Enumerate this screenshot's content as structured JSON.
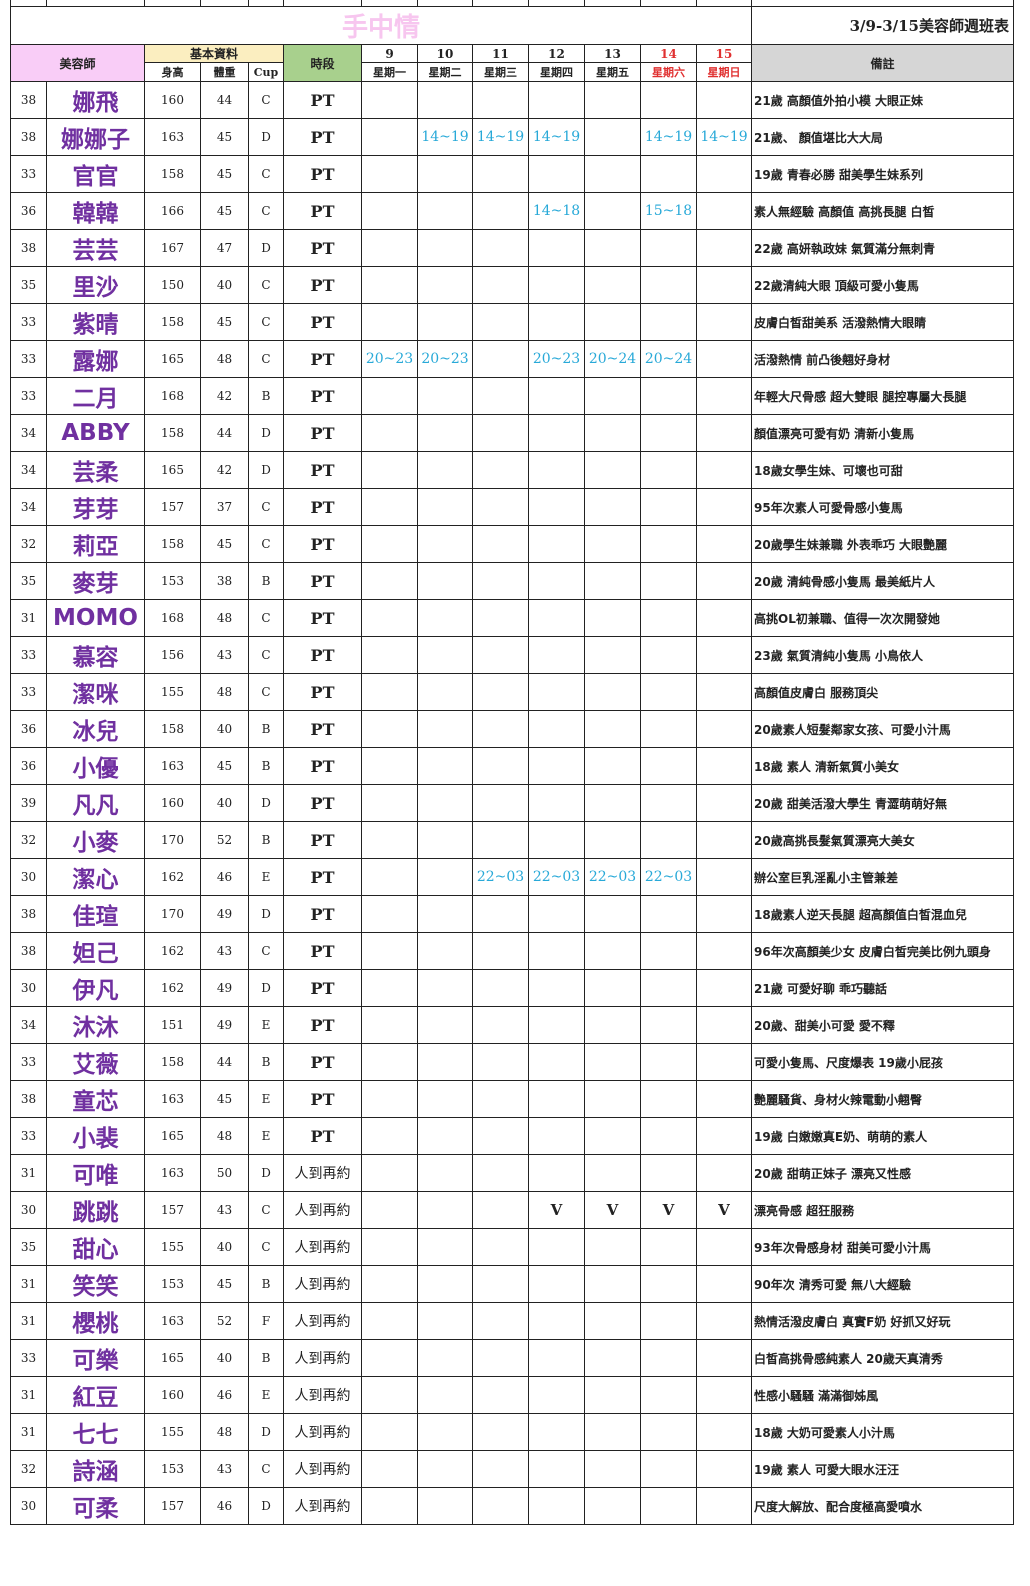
{
  "title": {
    "brand": "手中情",
    "week": "3/9-3/15美容師週班表"
  },
  "header": {
    "beautician": "美容師",
    "basic": "基本資料",
    "height": "身高",
    "weight": "體重",
    "cup": "Cup",
    "period": "時段",
    "notes": "備註",
    "days": [
      {
        "date": "9",
        "weekday": "星期一"
      },
      {
        "date": "10",
        "weekday": "星期二"
      },
      {
        "date": "11",
        "weekday": "星期三"
      },
      {
        "date": "12",
        "weekday": "星期四"
      },
      {
        "date": "13",
        "weekday": "星期五"
      },
      {
        "date": "14",
        "weekday": "星期六",
        "weekend": true
      },
      {
        "date": "15",
        "weekday": "星期日",
        "weekend": true
      }
    ]
  },
  "colors": {
    "name": "#7030a0",
    "schedule": "#28a9d8",
    "weekend": "#e03030",
    "brand": "#f7c6ef"
  },
  "rows": [
    {
      "no": "38",
      "name": "娜飛",
      "h": "160",
      "w": "44",
      "cup": "C",
      "period": "PT",
      "s": [
        "",
        "",
        "",
        "",
        "",
        "",
        ""
      ],
      "note": "21歲 高顏值外拍小模 大眼正妹"
    },
    {
      "no": "38",
      "name": "娜娜子",
      "h": "163",
      "w": "45",
      "cup": "D",
      "period": "PT",
      "s": [
        "",
        "14~19",
        "14~19",
        "14~19",
        "",
        "14~19",
        "14~19"
      ],
      "note": "21歲、 顏值堪比大大局"
    },
    {
      "no": "33",
      "name": "官官",
      "h": "158",
      "w": "45",
      "cup": "C",
      "period": "PT",
      "s": [
        "",
        "",
        "",
        "",
        "",
        "",
        ""
      ],
      "note": "19歲 青春必勝  甜美學生妹系列"
    },
    {
      "no": "36",
      "name": "韓韓",
      "h": "166",
      "w": "45",
      "cup": "C",
      "period": "PT",
      "s": [
        "",
        "",
        "",
        "14~18",
        "",
        "15~18",
        ""
      ],
      "note": "素人無經驗 高顏值 高挑長腿 白皙"
    },
    {
      "no": "38",
      "name": "芸芸",
      "h": "167",
      "w": "47",
      "cup": "D",
      "period": "PT",
      "s": [
        "",
        "",
        "",
        "",
        "",
        "",
        ""
      ],
      "note": "22歲 高妍執政妹 氣質滿分無刺青"
    },
    {
      "no": "35",
      "name": "里沙",
      "h": "150",
      "w": "40",
      "cup": "C",
      "period": "PT",
      "s": [
        "",
        "",
        "",
        "",
        "",
        "",
        ""
      ],
      "note": "22歲清純大眼 頂級可愛小隻馬"
    },
    {
      "no": "33",
      "name": "紫晴",
      "h": "158",
      "w": "45",
      "cup": "C",
      "period": "PT",
      "s": [
        "",
        "",
        "",
        "",
        "",
        "",
        ""
      ],
      "note": "皮膚白皙甜美系 活潑熱情大眼睛"
    },
    {
      "no": "33",
      "name": "露娜",
      "h": "165",
      "w": "48",
      "cup": "C",
      "period": "PT",
      "s": [
        "20~23",
        "20~23",
        "",
        "20~23",
        "20~24",
        "20~24",
        ""
      ],
      "note": "活潑熱情  前凸後翹好身材"
    },
    {
      "no": "33",
      "name": "二月",
      "h": "168",
      "w": "42",
      "cup": "B",
      "period": "PT",
      "s": [
        "",
        "",
        "",
        "",
        "",
        "",
        ""
      ],
      "note": "年輕大尺骨感 超大雙眼 腿控專屬大長腿"
    },
    {
      "no": "34",
      "name": "ABBY",
      "h": "158",
      "w": "44",
      "cup": "D",
      "period": "PT",
      "s": [
        "",
        "",
        "",
        "",
        "",
        "",
        ""
      ],
      "note": "顏值漂亮可愛有奶 清新小隻馬"
    },
    {
      "no": "34",
      "name": "芸柔",
      "h": "165",
      "w": "42",
      "cup": "D",
      "period": "PT",
      "s": [
        "",
        "",
        "",
        "",
        "",
        "",
        ""
      ],
      "note": "18歲女學生妹、可壞也可甜"
    },
    {
      "no": "34",
      "name": "芽芽",
      "h": "157",
      "w": "37",
      "cup": "C",
      "period": "PT",
      "s": [
        "",
        "",
        "",
        "",
        "",
        "",
        ""
      ],
      "note": "95年次素人可愛骨感小隻馬"
    },
    {
      "no": "32",
      "name": "莉亞",
      "h": "158",
      "w": "45",
      "cup": "C",
      "period": "PT",
      "s": [
        "",
        "",
        "",
        "",
        "",
        "",
        ""
      ],
      "note": "20歲學生妹兼職 外表乖巧 大眼艷麗"
    },
    {
      "no": "35",
      "name": "麥芽",
      "h": "153",
      "w": "38",
      "cup": "B",
      "period": "PT",
      "s": [
        "",
        "",
        "",
        "",
        "",
        "",
        ""
      ],
      "note": "20歲 清純骨感小隻馬 最美紙片人"
    },
    {
      "no": "31",
      "name": "MOMO",
      "h": "168",
      "w": "48",
      "cup": "C",
      "period": "PT",
      "s": [
        "",
        "",
        "",
        "",
        "",
        "",
        ""
      ],
      "note": "高挑OL初兼職、值得一次次開發她"
    },
    {
      "no": "33",
      "name": "慕容",
      "h": "156",
      "w": "43",
      "cup": "C",
      "period": "PT",
      "s": [
        "",
        "",
        "",
        "",
        "",
        "",
        ""
      ],
      "note": "23歲 氣質清純小隻馬 小鳥依人"
    },
    {
      "no": "33",
      "name": "潔咪",
      "h": "155",
      "w": "48",
      "cup": "C",
      "period": "PT",
      "s": [
        "",
        "",
        "",
        "",
        "",
        "",
        ""
      ],
      "note": "高顏值皮膚白 服務頂尖"
    },
    {
      "no": "36",
      "name": "冰兒",
      "h": "158",
      "w": "40",
      "cup": "B",
      "period": "PT",
      "s": [
        "",
        "",
        "",
        "",
        "",
        "",
        ""
      ],
      "note": "20歲素人短髮鄰家女孩、可愛小汁馬"
    },
    {
      "no": "36",
      "name": "小優",
      "h": "163",
      "w": "45",
      "cup": "B",
      "period": "PT",
      "s": [
        "",
        "",
        "",
        "",
        "",
        "",
        ""
      ],
      "note": "18歲 素人 清新氣質小美女"
    },
    {
      "no": "39",
      "name": "凡凡",
      "h": "160",
      "w": "40",
      "cup": "D",
      "period": "PT",
      "s": [
        "",
        "",
        "",
        "",
        "",
        "",
        ""
      ],
      "note": "20歲 甜美活潑大學生 青澀萌萌好無"
    },
    {
      "no": "32",
      "name": "小麥",
      "h": "170",
      "w": "52",
      "cup": "B",
      "period": "PT",
      "s": [
        "",
        "",
        "",
        "",
        "",
        "",
        ""
      ],
      "note": "20歲高挑長髮氣質漂亮大美女"
    },
    {
      "no": "30",
      "name": "潔心",
      "h": "162",
      "w": "46",
      "cup": "E",
      "period": "PT",
      "s": [
        "",
        "",
        "22~03",
        "22~03",
        "22~03",
        "22~03",
        ""
      ],
      "note": "辦公室巨乳淫亂小主管兼差"
    },
    {
      "no": "38",
      "name": "佳瑄",
      "h": "170",
      "w": "49",
      "cup": "D",
      "period": "PT",
      "s": [
        "",
        "",
        "",
        "",
        "",
        "",
        ""
      ],
      "note": "18歲素人逆天長腿 超高顏值白皙混血兒"
    },
    {
      "no": "38",
      "name": "妲己",
      "h": "162",
      "w": "43",
      "cup": "C",
      "period": "PT",
      "s": [
        "",
        "",
        "",
        "",
        "",
        "",
        ""
      ],
      "note": "96年次高顏美少女 皮膚白皙完美比例九頭身"
    },
    {
      "no": "30",
      "name": "伊凡",
      "h": "162",
      "w": "49",
      "cup": "D",
      "period": "PT",
      "s": [
        "",
        "",
        "",
        "",
        "",
        "",
        ""
      ],
      "note": "21歲 可愛好聊 乖巧聽話"
    },
    {
      "no": "34",
      "name": "沐沐",
      "h": "151",
      "w": "49",
      "cup": "E",
      "period": "PT",
      "s": [
        "",
        "",
        "",
        "",
        "",
        "",
        ""
      ],
      "note": "20歲、甜美小可愛 愛不釋"
    },
    {
      "no": "33",
      "name": "艾薇",
      "h": "158",
      "w": "44",
      "cup": "B",
      "period": "PT",
      "s": [
        "",
        "",
        "",
        "",
        "",
        "",
        ""
      ],
      "note": "可愛小隻馬、尺度爆表 19歲小屁孩"
    },
    {
      "no": "38",
      "name": "童芯",
      "h": "163",
      "w": "45",
      "cup": "E",
      "period": "PT",
      "s": [
        "",
        "",
        "",
        "",
        "",
        "",
        ""
      ],
      "note": "艷麗騷貨、身材火辣電動小翹臀"
    },
    {
      "no": "33",
      "name": "小裴",
      "h": "165",
      "w": "48",
      "cup": "E",
      "period": "PT",
      "s": [
        "",
        "",
        "",
        "",
        "",
        "",
        ""
      ],
      "note": "19歲 白嫩嫩真E奶、萌萌的素人"
    },
    {
      "no": "31",
      "name": "可唯",
      "h": "163",
      "w": "50",
      "cup": "D",
      "period": "人到再約",
      "s": [
        "",
        "",
        "",
        "",
        "",
        "",
        ""
      ],
      "note": "20歲 甜萌正妹子 漂亮又性感"
    },
    {
      "no": "30",
      "name": "跳跳",
      "h": "157",
      "w": "43",
      "cup": "C",
      "period": "人到再約",
      "s": [
        "",
        "",
        "",
        "V",
        "V",
        "V",
        "V"
      ],
      "note": "漂亮骨感 超狂服務"
    },
    {
      "no": "35",
      "name": "甜心",
      "h": "155",
      "w": "40",
      "cup": "C",
      "period": "人到再約",
      "s": [
        "",
        "",
        "",
        "",
        "",
        "",
        ""
      ],
      "note": "93年次骨感身材  甜美可愛小汁馬"
    },
    {
      "no": "31",
      "name": "笑笑",
      "h": "153",
      "w": "45",
      "cup": "B",
      "period": "人到再約",
      "s": [
        "",
        "",
        "",
        "",
        "",
        "",
        ""
      ],
      "note": "90年次 清秀可愛 無八大經驗"
    },
    {
      "no": "31",
      "name": "櫻桃",
      "h": "163",
      "w": "52",
      "cup": "F",
      "period": "人到再約",
      "s": [
        "",
        "",
        "",
        "",
        "",
        "",
        ""
      ],
      "note": "熱情活潑皮膚白 真實F奶 好抓又好玩"
    },
    {
      "no": "33",
      "name": "可樂",
      "h": "165",
      "w": "40",
      "cup": "B",
      "period": "人到再約",
      "s": [
        "",
        "",
        "",
        "",
        "",
        "",
        ""
      ],
      "note": "白皙高挑骨感純素人 20歲天真清秀"
    },
    {
      "no": "31",
      "name": "紅豆",
      "h": "160",
      "w": "46",
      "cup": "E",
      "period": "人到再約",
      "s": [
        "",
        "",
        "",
        "",
        "",
        "",
        ""
      ],
      "note": "性感小騷騷 滿滿御姊風"
    },
    {
      "no": "31",
      "name": "七七",
      "h": "155",
      "w": "48",
      "cup": "D",
      "period": "人到再約",
      "s": [
        "",
        "",
        "",
        "",
        "",
        "",
        ""
      ],
      "note": "18歲 大奶可愛素人小汁馬"
    },
    {
      "no": "32",
      "name": "詩涵",
      "h": "153",
      "w": "43",
      "cup": "C",
      "period": "人到再約",
      "s": [
        "",
        "",
        "",
        "",
        "",
        "",
        ""
      ],
      "note": "19歲 素人 可愛大眼水汪汪"
    },
    {
      "no": "30",
      "name": "可柔",
      "h": "157",
      "w": "46",
      "cup": "D",
      "period": "人到再約",
      "s": [
        "",
        "",
        "",
        "",
        "",
        "",
        ""
      ],
      "note": "尺度大解放、配合度極高愛噴水"
    }
  ]
}
